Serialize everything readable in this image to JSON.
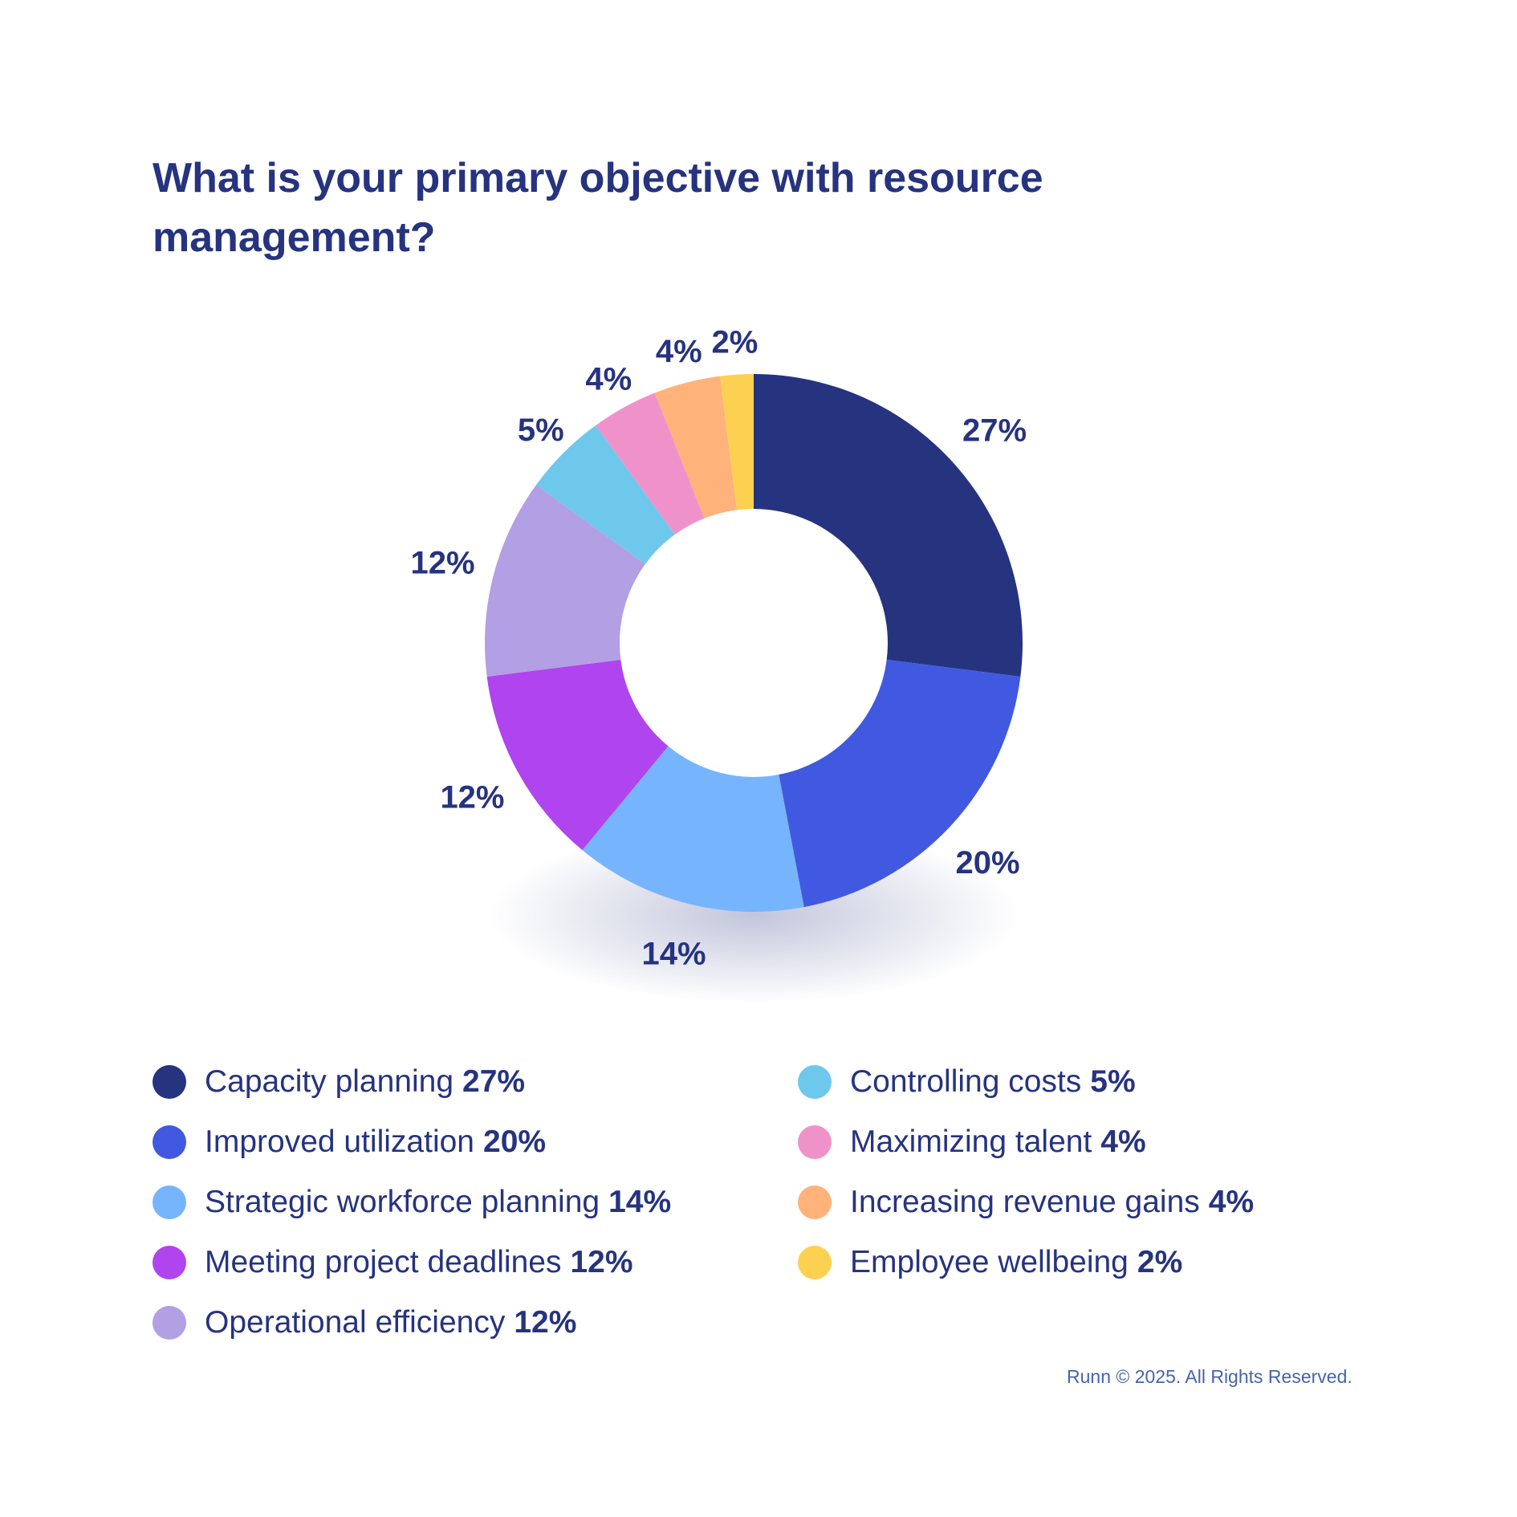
{
  "chart_data": {
    "type": "pie",
    "variant": "donut",
    "title": "What is your primary objective with resource management?",
    "categories": [
      "Capacity planning",
      "Improved utilization",
      "Strategic workforce planning",
      "Meeting project deadlines",
      "Operational efficiency",
      "Controlling costs",
      "Maximizing talent",
      "Increasing revenue gains",
      "Employee wellbeing"
    ],
    "values": [
      27,
      20,
      14,
      12,
      12,
      5,
      4,
      4,
      2
    ],
    "labels": [
      "27%",
      "20%",
      "14%",
      "12%",
      "12%",
      "5%",
      "4%",
      "4%",
      "2%"
    ],
    "colors": [
      "#26337f",
      "#4159e0",
      "#76b4fe",
      "#b044ee",
      "#b39fe4",
      "#6dc8ec",
      "#f092ca",
      "#ffb27a",
      "#fcd152"
    ],
    "legend_placement": "bottom"
  },
  "footer": "Runn © 2025. All Rights Reserved."
}
